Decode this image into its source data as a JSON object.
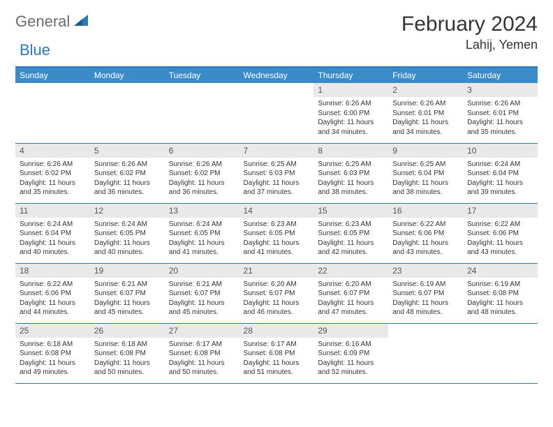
{
  "brand": {
    "part1": "General",
    "part2": "Blue"
  },
  "title": "February 2024",
  "location": "Lahij, Yemen",
  "colors": {
    "header_bg": "#3b8bc9",
    "header_text": "#ffffff",
    "border": "#2f77b5",
    "daynum_bg": "#e9e9e9",
    "text": "#333333",
    "logo_gray": "#6b6b6b",
    "logo_blue": "#2f77b5"
  },
  "weekdays": [
    "Sunday",
    "Monday",
    "Tuesday",
    "Wednesday",
    "Thursday",
    "Friday",
    "Saturday"
  ],
  "weeks": [
    [
      null,
      null,
      null,
      null,
      {
        "n": "1",
        "sr": "6:26 AM",
        "ss": "6:00 PM",
        "dl": "11 hours and 34 minutes."
      },
      {
        "n": "2",
        "sr": "6:26 AM",
        "ss": "6:01 PM",
        "dl": "11 hours and 34 minutes."
      },
      {
        "n": "3",
        "sr": "6:26 AM",
        "ss": "6:01 PM",
        "dl": "11 hours and 35 minutes."
      }
    ],
    [
      {
        "n": "4",
        "sr": "6:26 AM",
        "ss": "6:02 PM",
        "dl": "11 hours and 35 minutes."
      },
      {
        "n": "5",
        "sr": "6:26 AM",
        "ss": "6:02 PM",
        "dl": "11 hours and 36 minutes."
      },
      {
        "n": "6",
        "sr": "6:26 AM",
        "ss": "6:02 PM",
        "dl": "11 hours and 36 minutes."
      },
      {
        "n": "7",
        "sr": "6:25 AM",
        "ss": "6:03 PM",
        "dl": "11 hours and 37 minutes."
      },
      {
        "n": "8",
        "sr": "6:25 AM",
        "ss": "6:03 PM",
        "dl": "11 hours and 38 minutes."
      },
      {
        "n": "9",
        "sr": "6:25 AM",
        "ss": "6:04 PM",
        "dl": "11 hours and 38 minutes."
      },
      {
        "n": "10",
        "sr": "6:24 AM",
        "ss": "6:04 PM",
        "dl": "11 hours and 39 minutes."
      }
    ],
    [
      {
        "n": "11",
        "sr": "6:24 AM",
        "ss": "6:04 PM",
        "dl": "11 hours and 40 minutes."
      },
      {
        "n": "12",
        "sr": "6:24 AM",
        "ss": "6:05 PM",
        "dl": "11 hours and 40 minutes."
      },
      {
        "n": "13",
        "sr": "6:24 AM",
        "ss": "6:05 PM",
        "dl": "11 hours and 41 minutes."
      },
      {
        "n": "14",
        "sr": "6:23 AM",
        "ss": "6:05 PM",
        "dl": "11 hours and 41 minutes."
      },
      {
        "n": "15",
        "sr": "6:23 AM",
        "ss": "6:05 PM",
        "dl": "11 hours and 42 minutes."
      },
      {
        "n": "16",
        "sr": "6:22 AM",
        "ss": "6:06 PM",
        "dl": "11 hours and 43 minutes."
      },
      {
        "n": "17",
        "sr": "6:22 AM",
        "ss": "6:06 PM",
        "dl": "11 hours and 43 minutes."
      }
    ],
    [
      {
        "n": "18",
        "sr": "6:22 AM",
        "ss": "6:06 PM",
        "dl": "11 hours and 44 minutes."
      },
      {
        "n": "19",
        "sr": "6:21 AM",
        "ss": "6:07 PM",
        "dl": "11 hours and 45 minutes."
      },
      {
        "n": "20",
        "sr": "6:21 AM",
        "ss": "6:07 PM",
        "dl": "11 hours and 45 minutes."
      },
      {
        "n": "21",
        "sr": "6:20 AM",
        "ss": "6:07 PM",
        "dl": "11 hours and 46 minutes."
      },
      {
        "n": "22",
        "sr": "6:20 AM",
        "ss": "6:07 PM",
        "dl": "11 hours and 47 minutes."
      },
      {
        "n": "23",
        "sr": "6:19 AM",
        "ss": "6:07 PM",
        "dl": "11 hours and 48 minutes."
      },
      {
        "n": "24",
        "sr": "6:19 AM",
        "ss": "6:08 PM",
        "dl": "11 hours and 48 minutes."
      }
    ],
    [
      {
        "n": "25",
        "sr": "6:18 AM",
        "ss": "6:08 PM",
        "dl": "11 hours and 49 minutes."
      },
      {
        "n": "26",
        "sr": "6:18 AM",
        "ss": "6:08 PM",
        "dl": "11 hours and 50 minutes."
      },
      {
        "n": "27",
        "sr": "6:17 AM",
        "ss": "6:08 PM",
        "dl": "11 hours and 50 minutes."
      },
      {
        "n": "28",
        "sr": "6:17 AM",
        "ss": "6:08 PM",
        "dl": "11 hours and 51 minutes."
      },
      {
        "n": "29",
        "sr": "6:16 AM",
        "ss": "6:09 PM",
        "dl": "11 hours and 52 minutes."
      },
      null,
      null
    ]
  ],
  "labels": {
    "sunrise": "Sunrise:",
    "sunset": "Sunset:",
    "daylight": "Daylight:"
  }
}
